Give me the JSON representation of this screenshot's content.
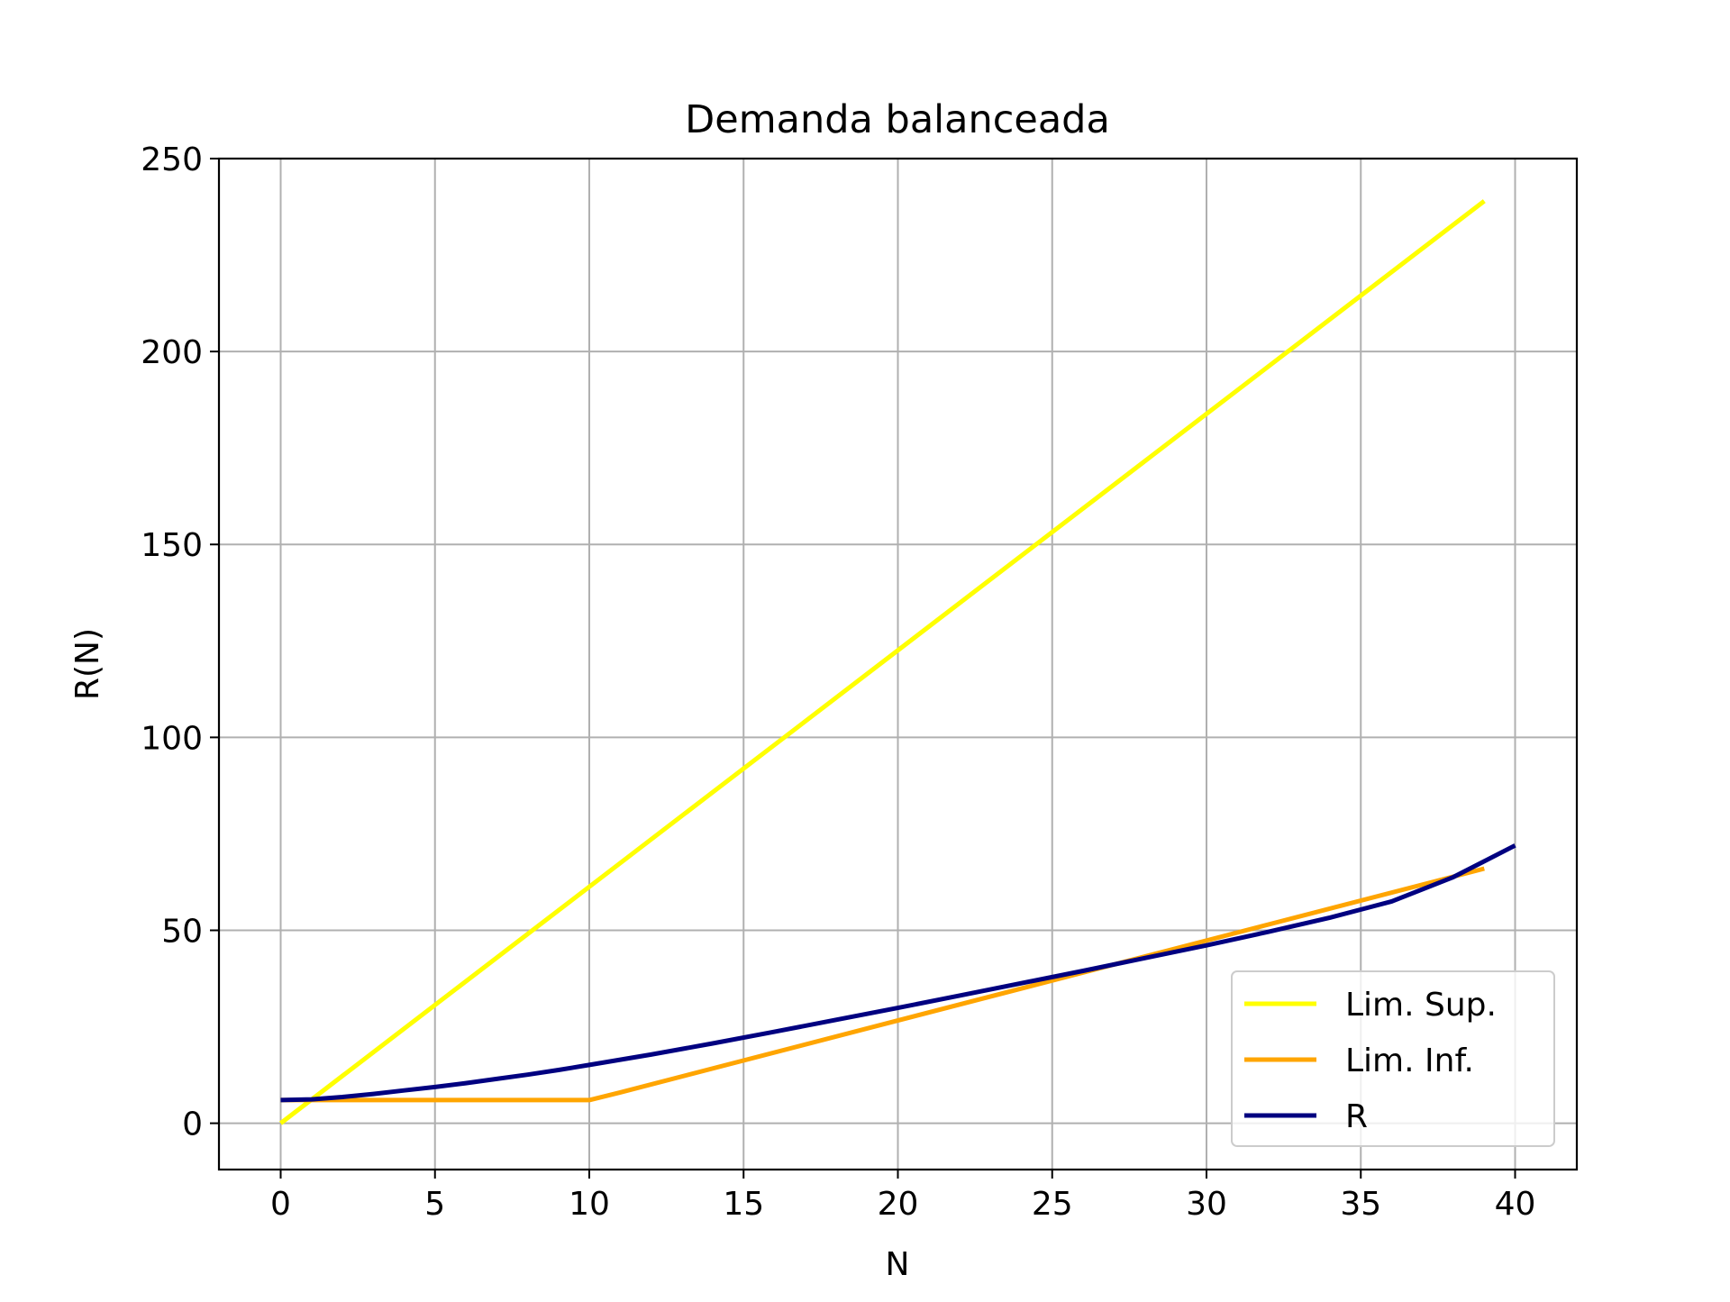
{
  "chart_data": {
    "type": "line",
    "title": "Demanda balanceada",
    "xlabel": "N",
    "ylabel": "R(N)",
    "xlim": [
      -2,
      42
    ],
    "ylim": [
      -12,
      250
    ],
    "xticks": [
      0,
      5,
      10,
      15,
      20,
      25,
      30,
      35,
      40
    ],
    "yticks": [
      0,
      50,
      100,
      150,
      200,
      250
    ],
    "grid": true,
    "legend_position": "lower-right",
    "series": [
      {
        "name": "Lim. Sup.",
        "color": "#ffff00",
        "x": [
          0,
          39
        ],
        "y": [
          0,
          239
        ]
      },
      {
        "name": "Lim. Inf.",
        "color": "#ffa500",
        "x": [
          0,
          10,
          11,
          39
        ],
        "y": [
          6,
          6,
          8,
          66
        ]
      },
      {
        "name": "R",
        "color": "#000080",
        "x": [
          0,
          1,
          2,
          3,
          4,
          5,
          6,
          7,
          8,
          9,
          10,
          12,
          14,
          16,
          18,
          20,
          22,
          24,
          26,
          28,
          30,
          32,
          34,
          36,
          38,
          40
        ],
        "y": [
          6,
          6.2,
          6.8,
          7.6,
          8.5,
          9.4,
          10.4,
          11.5,
          12.6,
          13.8,
          15.1,
          17.8,
          20.7,
          23.7,
          26.8,
          29.9,
          33.1,
          36.3,
          39.5,
          42.8,
          46.1,
          49.6,
          53.3,
          57.5,
          63.8,
          72
        ]
      }
    ]
  }
}
